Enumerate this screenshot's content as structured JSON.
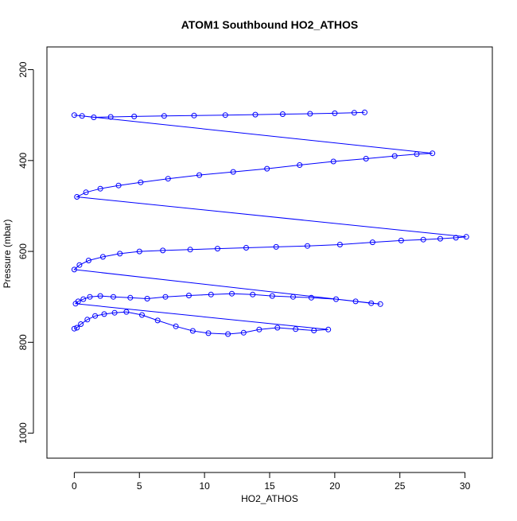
{
  "chart_data": {
    "type": "scatter",
    "title": "ATOM1 Southbound HO2_ATHOS",
    "xlabel": "HO2_ATHOS",
    "ylabel": "Pressure (mbar)",
    "xlim": [
      -2.1,
      32.1
    ],
    "ylim": [
      1055,
      150
    ],
    "y_reversed": true,
    "grid": false,
    "legend": "none",
    "x_ticks": [
      0,
      5,
      10,
      15,
      20,
      25,
      30
    ],
    "x_tick_labels": [
      "0",
      "5",
      "10",
      "15",
      "20",
      "25",
      "30"
    ],
    "y_ticks": [
      200,
      400,
      600,
      800,
      1000
    ],
    "y_tick_labels": [
      "200",
      "400",
      "600",
      "800",
      "1000"
    ],
    "series": [
      {
        "color": "#0000FF",
        "marker": "open-circle",
        "connect_points": true,
        "x": [
          0.0,
          0.2,
          0.5,
          1.0,
          1.6,
          2.3,
          3.1,
          4.0,
          5.2,
          6.4,
          7.8,
          9.1,
          10.3,
          11.8,
          13.0,
          14.2,
          15.6,
          17.0,
          18.4,
          19.5,
          0.1,
          0.3,
          0.7,
          1.2,
          2.0,
          3.0,
          4.3,
          5.6,
          7.0,
          8.8,
          10.5,
          12.1,
          13.7,
          15.2,
          16.8,
          18.2,
          20.1,
          21.6,
          22.8,
          23.5,
          0.0,
          0.4,
          1.1,
          2.2,
          3.5,
          5.0,
          6.8,
          8.9,
          11.0,
          13.2,
          15.5,
          17.9,
          20.4,
          22.9,
          25.1,
          26.8,
          28.1,
          29.3,
          30.1,
          0.2,
          0.9,
          2.0,
          3.4,
          5.1,
          7.2,
          9.6,
          12.2,
          14.8,
          17.3,
          19.9,
          22.4,
          24.6,
          26.3,
          27.5,
          0.0,
          0.6,
          1.5,
          2.8,
          4.6,
          6.9,
          9.2,
          11.6,
          13.9,
          16.0,
          18.1,
          20.0,
          21.5,
          22.3
        ],
        "y": [
          770,
          768,
          760,
          750,
          742,
          738,
          735,
          733,
          740,
          752,
          765,
          775,
          780,
          782,
          779,
          772,
          768,
          771,
          774,
          772,
          715,
          710,
          705,
          700,
          698,
          700,
          702,
          704,
          700,
          697,
          695,
          693,
          695,
          698,
          700,
          702,
          705,
          710,
          714,
          716,
          640,
          630,
          620,
          612,
          605,
          600,
          598,
          596,
          594,
          592,
          590,
          588,
          585,
          580,
          576,
          574,
          572,
          570,
          568,
          480,
          470,
          462,
          455,
          448,
          440,
          432,
          425,
          418,
          410,
          402,
          396,
          390,
          386,
          384,
          300,
          302,
          305,
          304,
          303,
          302,
          301,
          300,
          299,
          298,
          297,
          296,
          295,
          294
        ]
      }
    ]
  }
}
